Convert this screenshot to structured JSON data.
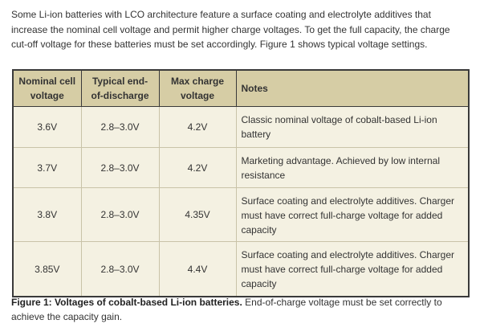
{
  "intro": "Some Li-ion batteries with LCO architecture feature a surface coating and electrolyte additives that increase the nominal cell voltage and permit higher charge voltages. To get the full capacity, the charge cut-off voltage for these batteries must be set accordingly. Figure 1 shows typical voltage settings.",
  "table": {
    "header": [
      "Nominal cell voltage",
      "Typical end-of-discharge",
      "Max charge voltage",
      "Notes"
    ],
    "rows": [
      [
        "3.6V",
        "2.8–3.0V",
        "4.2V",
        "Classic nominal voltage of cobalt-based Li-ion battery"
      ],
      [
        "3.7V",
        "2.8–3.0V",
        "4.2V",
        "Marketing advantage. Achieved by low internal resistance"
      ],
      [
        "3.8V",
        "2.8–3.0V",
        "4.35V",
        "Surface coating and electrolyte additives. Charger must have correct full-charge voltage for added capacity"
      ],
      [
        "3.85V",
        "2.8–3.0V",
        "4.4V",
        "Surface coating and electrolyte additives. Charger must have correct full-charge voltage for added capacity"
      ]
    ]
  },
  "caption": {
    "label": "Figure 1: Voltages of cobalt-based Li-ion batteries.",
    "text": "End-of-charge voltage must be set correctly to achieve the capacity gain."
  }
}
